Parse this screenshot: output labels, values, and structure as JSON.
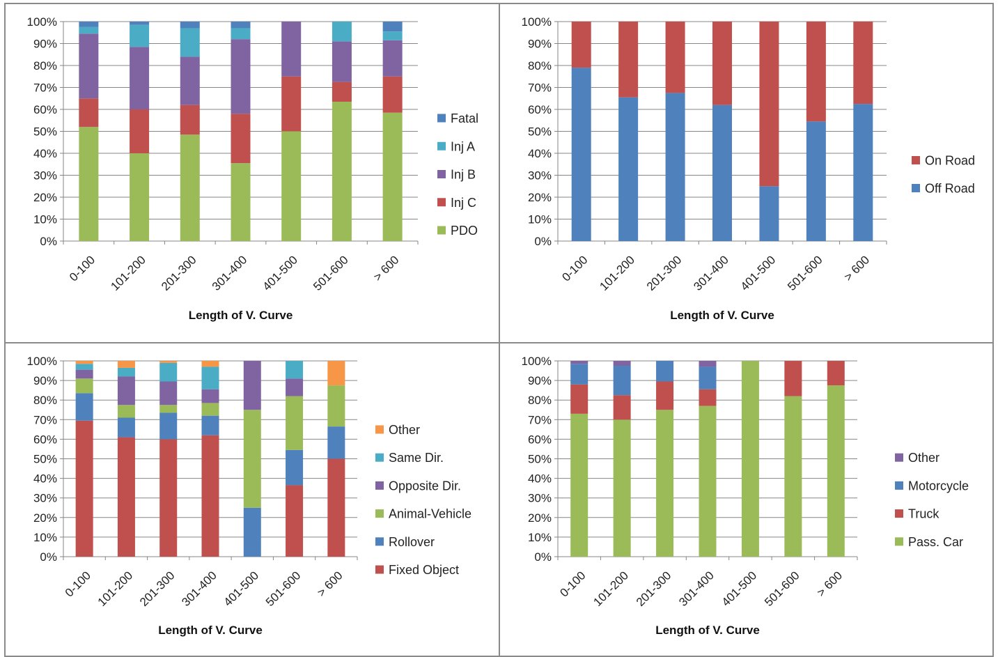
{
  "chart_data": [
    {
      "type": "bar",
      "stacked": true,
      "title": "",
      "xlabel": "Length of V. Curve",
      "ylabel": "",
      "ylim": [
        0,
        100
      ],
      "yticks": [
        "0%",
        "10%",
        "20%",
        "30%",
        "40%",
        "50%",
        "60%",
        "70%",
        "80%",
        "90%",
        "100%"
      ],
      "categories": [
        "0-100",
        "101-200",
        "201-300",
        "301-400",
        "401-500",
        "501-600",
        "> 600"
      ],
      "grid": true,
      "legend_position": "right",
      "series": [
        {
          "name": "PDO",
          "color": "#9BBB59",
          "values": [
            52,
            40,
            48.5,
            35.5,
            50,
            63.5,
            58.5
          ]
        },
        {
          "name": "Inj C",
          "color": "#C0504D",
          "values": [
            13,
            20,
            13.5,
            22.5,
            25,
            9,
            16.5
          ]
        },
        {
          "name": "Inj B",
          "color": "#8064A2",
          "values": [
            29.5,
            28.5,
            22,
            34,
            25,
            18.5,
            16.5
          ]
        },
        {
          "name": "Inj A",
          "color": "#4BACC6",
          "values": [
            3,
            10,
            13,
            5,
            0,
            9,
            4
          ]
        },
        {
          "name": "Fatal",
          "color": "#4F81BD",
          "values": [
            2.5,
            1.5,
            3,
            3,
            0,
            0,
            4.5
          ]
        }
      ]
    },
    {
      "type": "bar",
      "stacked": true,
      "title": "",
      "xlabel": "Length of V. Curve",
      "ylabel": "",
      "ylim": [
        0,
        100
      ],
      "yticks": [
        "0%",
        "10%",
        "20%",
        "30%",
        "40%",
        "50%",
        "60%",
        "70%",
        "80%",
        "90%",
        "100%"
      ],
      "categories": [
        "0-100",
        "101-200",
        "201-300",
        "301-400",
        "401-500",
        "501-600",
        "> 600"
      ],
      "grid": true,
      "legend_position": "right",
      "series": [
        {
          "name": "Off Road",
          "color": "#4F81BD",
          "values": [
            79,
            65.5,
            67.5,
            62,
            25,
            54.5,
            62.5
          ]
        },
        {
          "name": "On Road",
          "color": "#C0504D",
          "values": [
            21,
            34.5,
            32.5,
            38,
            75,
            45.5,
            37.5
          ]
        }
      ]
    },
    {
      "type": "bar",
      "stacked": true,
      "title": "",
      "xlabel": "Length of V. Curve",
      "ylabel": "",
      "ylim": [
        0,
        100
      ],
      "yticks": [
        "0%",
        "10%",
        "20%",
        "30%",
        "40%",
        "50%",
        "60%",
        "70%",
        "80%",
        "90%",
        "100%"
      ],
      "categories": [
        "0-100",
        "101-200",
        "201-300",
        "301-400",
        "401-500",
        "501-600",
        "> 600"
      ],
      "grid": true,
      "legend_position": "right",
      "series": [
        {
          "name": "Fixed Object",
          "color": "#C0504D",
          "values": [
            69.5,
            61,
            60,
            62,
            0,
            36.5,
            50
          ]
        },
        {
          "name": "Rollover",
          "color": "#4F81BD",
          "values": [
            14,
            10,
            13.5,
            10,
            25,
            18,
            16.5
          ]
        },
        {
          "name": "Animal-Vehicle",
          "color": "#9BBB59",
          "values": [
            7.5,
            6.5,
            4,
            6.5,
            50,
            27.5,
            21
          ]
        },
        {
          "name": "Opposite Dir.",
          "color": "#8064A2",
          "values": [
            4.5,
            14.5,
            12,
            7,
            25,
            9,
            0
          ]
        },
        {
          "name": "Same Dir.",
          "color": "#4BACC6",
          "values": [
            3,
            4.5,
            9.5,
            11.5,
            0,
            9,
            0
          ]
        },
        {
          "name": "Other",
          "color": "#F79646",
          "values": [
            1.5,
            3.5,
            1,
            3,
            0,
            0,
            12.5
          ]
        }
      ]
    },
    {
      "type": "bar",
      "stacked": true,
      "title": "",
      "xlabel": "Length of V. Curve",
      "ylabel": "",
      "ylim": [
        0,
        100
      ],
      "yticks": [
        "0%",
        "10%",
        "20%",
        "30%",
        "40%",
        "50%",
        "60%",
        "70%",
        "80%",
        "90%",
        "100%"
      ],
      "categories": [
        "0-100",
        "101-200",
        "201-300",
        "301-400",
        "401-500",
        "501-600",
        "> 600"
      ],
      "grid": true,
      "legend_position": "right",
      "series": [
        {
          "name": "Pass. Car",
          "color": "#9BBB59",
          "values": [
            73,
            70,
            75,
            77,
            100,
            82,
            87.5
          ]
        },
        {
          "name": "Truck",
          "color": "#C0504D",
          "values": [
            15,
            12.5,
            14.5,
            8.5,
            0,
            18,
            12.5
          ]
        },
        {
          "name": "Motorcycle",
          "color": "#4F81BD",
          "values": [
            10.5,
            15,
            10.5,
            11.5,
            0,
            0,
            0
          ]
        },
        {
          "name": "Other",
          "color": "#8064A2",
          "values": [
            1.5,
            2.5,
            0,
            3,
            0,
            0,
            0
          ]
        }
      ]
    }
  ]
}
